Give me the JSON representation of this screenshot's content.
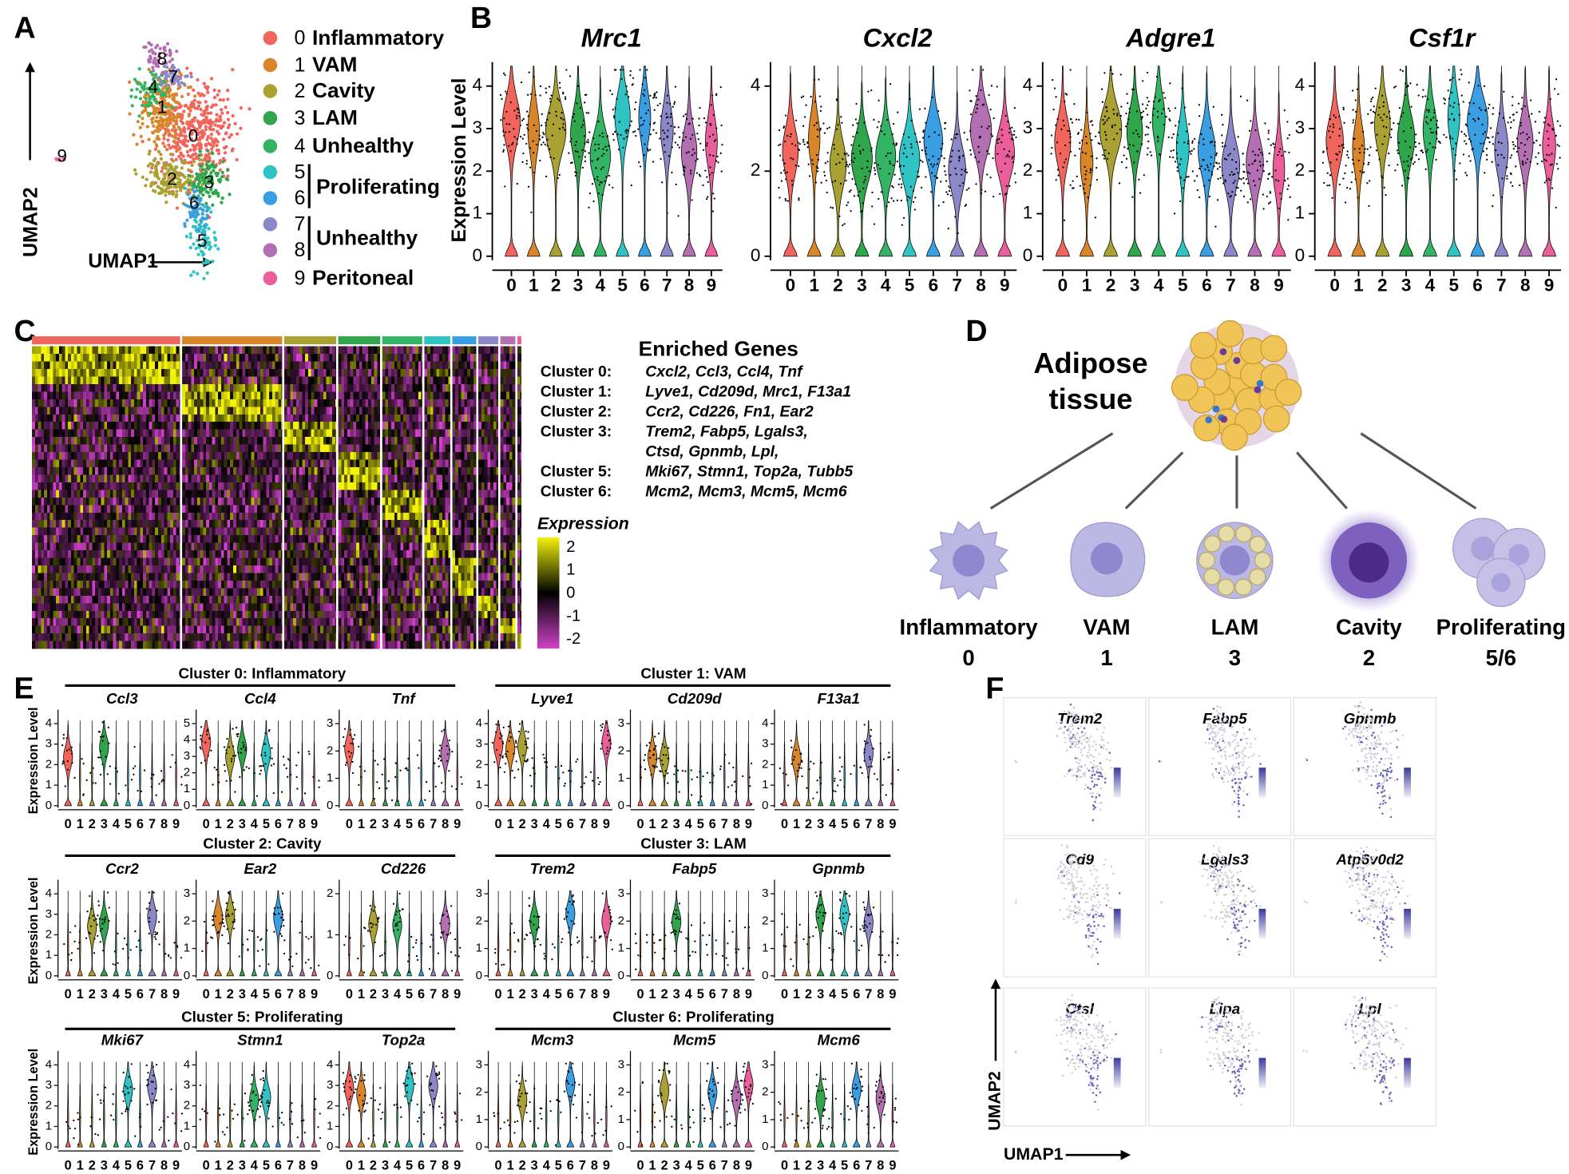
{
  "cluster_colors": [
    "#f2655c",
    "#d9862b",
    "#a9a232",
    "#2fa64b",
    "#33b464",
    "#2fc3c3",
    "#3a9fe2",
    "#8c87c9",
    "#b46fb3",
    "#ea5f9b"
  ],
  "panel_a": {
    "label": "A",
    "x_label": "UMAP1",
    "y_label": "UMAP2",
    "map_labels": [
      "0",
      "1",
      "2",
      "3",
      "4",
      "5",
      "6",
      "7",
      "8",
      "9"
    ],
    "legend": [
      {
        "num": "0",
        "name": "Inflammatory"
      },
      {
        "num": "1",
        "name": "VAM"
      },
      {
        "num": "2",
        "name": "Cavity"
      },
      {
        "num": "3",
        "name": "LAM"
      },
      {
        "num": "4",
        "name": "Unhealthy"
      },
      {
        "num": "5"
      },
      {
        "num": "6"
      },
      {
        "num": "7"
      },
      {
        "num": "8"
      },
      {
        "num": "9",
        "name": "Peritoneal"
      }
    ],
    "groups": [
      "Proliferating",
      "Unhealthy"
    ]
  },
  "panel_b": {
    "label": "B",
    "y_label": "Expression Level",
    "categories": [
      "0",
      "1",
      "2",
      "3",
      "4",
      "5",
      "6",
      "7",
      "8",
      "9"
    ],
    "plots": [
      {
        "gene": "Mrc1",
        "yticks": [
          "0",
          "1",
          "2",
          "3",
          "4"
        ]
      },
      {
        "gene": "Cxcl2",
        "yticks": [
          "0",
          "2",
          "4"
        ]
      },
      {
        "gene": "Adgre1",
        "yticks": [
          "0",
          "1",
          "2",
          "3",
          "4"
        ]
      },
      {
        "gene": "Csf1r",
        "yticks": [
          "0",
          "1",
          "2",
          "3",
          "4"
        ]
      }
    ]
  },
  "panel_c": {
    "label": "C",
    "genes_title": "Enriched Genes",
    "genes": [
      {
        "cluster": "Cluster 0:",
        "genes": "Cxcl2, Ccl3, Ccl4, Tnf"
      },
      {
        "cluster": "Cluster 1:",
        "genes": "Lyve1, Cd209d, Mrc1, F13a1"
      },
      {
        "cluster": "Cluster 2:",
        "genes": "Ccr2, Cd226, Fn1, Ear2"
      },
      {
        "cluster": "Cluster 3:",
        "genes": "Trem2,  Fabp5, Lgals3,"
      },
      {
        "genes": "Ctsd, Gpnmb, Lpl,"
      },
      {
        "cluster": "Cluster 5:",
        "genes": "Mki67, Stmn1, Top2a, Tubb5"
      },
      {
        "cluster": "Cluster 6:",
        "genes": "Mcm2, Mcm3, Mcm5, Mcm6"
      }
    ],
    "scale_title": "Expression",
    "scale_ticks": [
      "2",
      "1",
      "0",
      "-1",
      "-2"
    ]
  },
  "panel_d": {
    "label": "D",
    "title_lines": [
      "Adipose",
      "tissue"
    ],
    "cells": [
      {
        "name": "Inflammatory",
        "cluster": "0"
      },
      {
        "name": "VAM",
        "cluster": "1"
      },
      {
        "name": "LAM",
        "cluster": "3"
      },
      {
        "name": "Cavity",
        "cluster": "2"
      },
      {
        "name": "Proliferating",
        "cluster": "5/6"
      }
    ]
  },
  "panel_e": {
    "label": "E",
    "y_label": "Expression Level",
    "categories": [
      "0",
      "1",
      "2",
      "3",
      "4",
      "5",
      "6",
      "7",
      "8",
      "9"
    ],
    "groups": [
      {
        "title": "Cluster 0: Inflammatory",
        "plots": [
          {
            "gene": "Ccl3",
            "yticks": [
              "0",
              "1",
              "2",
              "3",
              "4"
            ]
          },
          {
            "gene": "Ccl4",
            "yticks": [
              "0",
              "1",
              "2",
              "3",
              "4",
              "5"
            ]
          },
          {
            "gene": "Tnf",
            "yticks": [
              "0",
              "1",
              "2",
              "3"
            ]
          }
        ]
      },
      {
        "title": "Cluster 1: VAM",
        "plots": [
          {
            "gene": "Lyve1",
            "yticks": [
              "0",
              "1",
              "2",
              "3",
              "4"
            ]
          },
          {
            "gene": "Cd209d",
            "yticks": [
              "0",
              "1",
              "2",
              "3"
            ]
          },
          {
            "gene": "F13a1",
            "yticks": [
              "0",
              "1",
              "2",
              "3",
              "4"
            ]
          }
        ]
      },
      {
        "title": "Cluster 2: Cavity",
        "plots": [
          {
            "gene": "Ccr2",
            "yticks": [
              "0",
              "1",
              "2",
              "3",
              "4"
            ]
          },
          {
            "gene": "Ear2",
            "yticks": [
              "0",
              "1",
              "2",
              "3"
            ]
          },
          {
            "gene": "Cd226",
            "yticks": [
              "0",
              "1",
              "2"
            ]
          }
        ]
      },
      {
        "title": "Cluster 3: LAM",
        "plots": [
          {
            "gene": "Trem2",
            "yticks": [
              "0",
              "1",
              "2",
              "3"
            ]
          },
          {
            "gene": "Fabp5",
            "yticks": [
              "0",
              "1",
              "2",
              "3"
            ]
          },
          {
            "gene": "Gpnmb",
            "yticks": [
              "0",
              "1",
              "2",
              "3"
            ]
          }
        ]
      },
      {
        "title": "Cluster 5: Proliferating",
        "plots": [
          {
            "gene": "Mki67",
            "yticks": [
              "0",
              "1",
              "2",
              "3",
              "4"
            ]
          },
          {
            "gene": "Stmn1",
            "yticks": [
              "0",
              "1",
              "2",
              "3",
              "4"
            ]
          },
          {
            "gene": "Top2a",
            "yticks": [
              "0",
              "1",
              "2",
              "3",
              "4"
            ]
          }
        ]
      },
      {
        "title": "Cluster 6: Proliferating",
        "plots": [
          {
            "gene": "Mcm3",
            "yticks": [
              "0",
              "1",
              "2",
              "3"
            ]
          },
          {
            "gene": "Mcm5",
            "yticks": [
              "0",
              "1",
              "2",
              "3"
            ]
          },
          {
            "gene": "Mcm6",
            "yticks": [
              "0",
              "1",
              "2",
              "3"
            ]
          }
        ]
      }
    ]
  },
  "panel_f": {
    "label": "F",
    "x_label": "UMAP1",
    "y_label": "UMAP2",
    "genes": [
      "Trem2",
      "Fabp5",
      "Gpnmb",
      "Cd9",
      "Lgals3",
      "Atp6v0d2",
      "Ctsl",
      "Lipa",
      "Lpl"
    ]
  }
}
